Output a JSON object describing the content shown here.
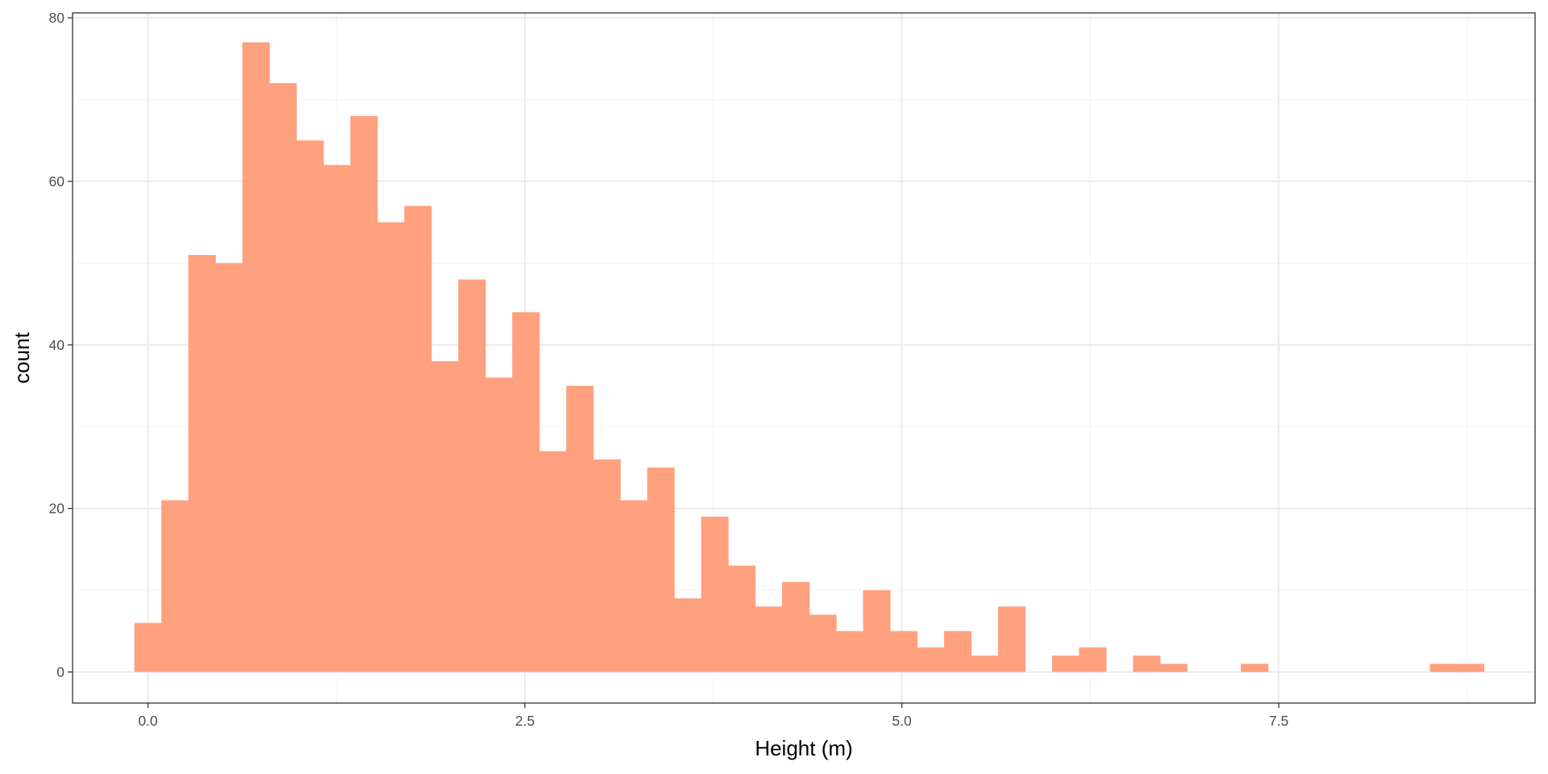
{
  "chart_data": {
    "type": "bar",
    "subtype": "histogram",
    "xlabel": "Height (m)",
    "ylabel": "count",
    "xlim": [
      -0.5,
      9.2
    ],
    "ylim": [
      -3.8,
      80.6
    ],
    "x_ticks": [
      0.0,
      2.5,
      5.0,
      7.5
    ],
    "x_tick_labels": [
      "0.0",
      "2.5",
      "5.0",
      "7.5"
    ],
    "y_ticks": [
      0,
      20,
      40,
      60,
      80
    ],
    "y_tick_labels": [
      "0",
      "20",
      "40",
      "60",
      "80"
    ],
    "grid": true,
    "bin_start": -0.09,
    "bin_width": 0.179,
    "counts": [
      6,
      21,
      51,
      50,
      77,
      72,
      65,
      62,
      68,
      55,
      57,
      38,
      48,
      36,
      44,
      27,
      35,
      26,
      21,
      25,
      9,
      19,
      13,
      8,
      11,
      7,
      5,
      10,
      5,
      3,
      5,
      2,
      8,
      0,
      2,
      3,
      0,
      2,
      1,
      0,
      0,
      1,
      0,
      0,
      0,
      0,
      0,
      0,
      1,
      1
    ],
    "colors": {
      "bar_fill": "#FFA07F",
      "grid_major": "#ebebeb",
      "grid_minor": "#f5f5f5",
      "panel_border": "#333333",
      "tick_text": "#4d4d4d",
      "title_text": "#000000"
    }
  }
}
